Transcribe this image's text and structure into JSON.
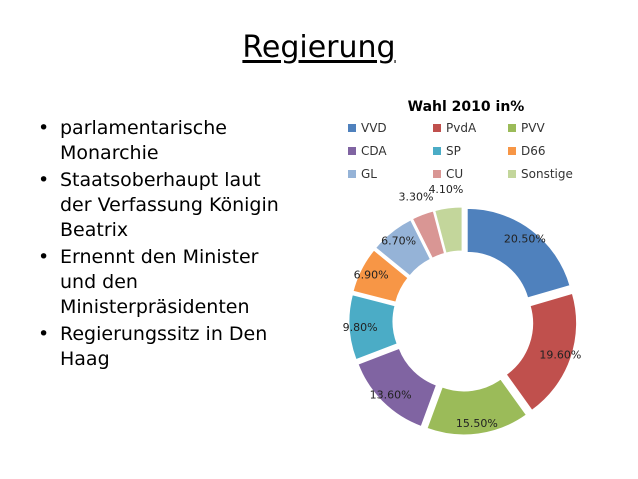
{
  "slide": {
    "title": "Regierung",
    "bullets": [
      "parlamentarische Monarchie",
      "Staatsoberhaupt laut der Verfassung Königin Beatrix",
      "Ernennt den Minister und den Ministerpräsidenten",
      "Regierungssitz in Den Haag"
    ],
    "bullet_glyph": "•"
  },
  "chart_data": {
    "type": "pie",
    "title": "Wahl 2010 in%",
    "legend_position": "top",
    "categories": [
      "VVD",
      "PvdA",
      "PVV",
      "CDA",
      "SP",
      "D66",
      "GL",
      "CU",
      "Sonstige"
    ],
    "values": [
      20.5,
      19.6,
      15.5,
      13.6,
      9.8,
      6.9,
      6.7,
      3.3,
      4.1
    ],
    "labels": [
      "20.50%",
      "19.60%",
      "15.50%",
      "13.60%",
      "9.80%",
      "6.90%",
      "6.70%",
      "3.30%",
      "4.10%"
    ],
    "colors": [
      "#4F81BD",
      "#C0504D",
      "#9BBB59",
      "#8064A2",
      "#4BACC6",
      "#F79646",
      "#95B3D7",
      "#D99694",
      "#C3D69B"
    ],
    "style": "doughnut-exploded"
  }
}
